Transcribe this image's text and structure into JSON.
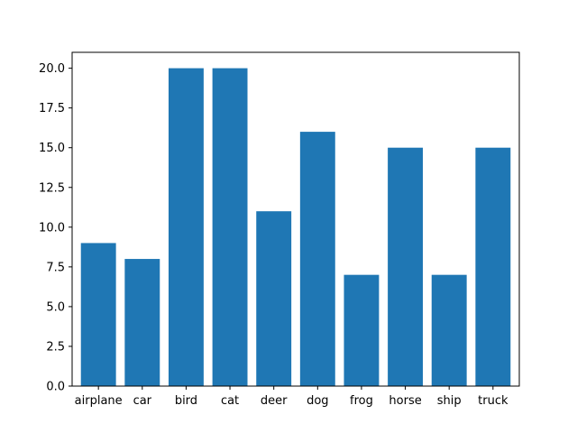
{
  "chart_data": {
    "type": "bar",
    "title": "",
    "xlabel": "",
    "ylabel": "",
    "categories": [
      "airplane",
      "car",
      "bird",
      "cat",
      "deer",
      "dog",
      "frog",
      "horse",
      "ship",
      "truck"
    ],
    "values": [
      9,
      8,
      20,
      20,
      11,
      16,
      7,
      15,
      7,
      15
    ],
    "ylim": [
      0,
      21
    ],
    "yticks": [
      "0.0",
      "2.5",
      "5.0",
      "7.5",
      "10.0",
      "12.5",
      "15.0",
      "17.5",
      "20.0"
    ],
    "grid": false,
    "bar_color": "#1f77b4"
  }
}
